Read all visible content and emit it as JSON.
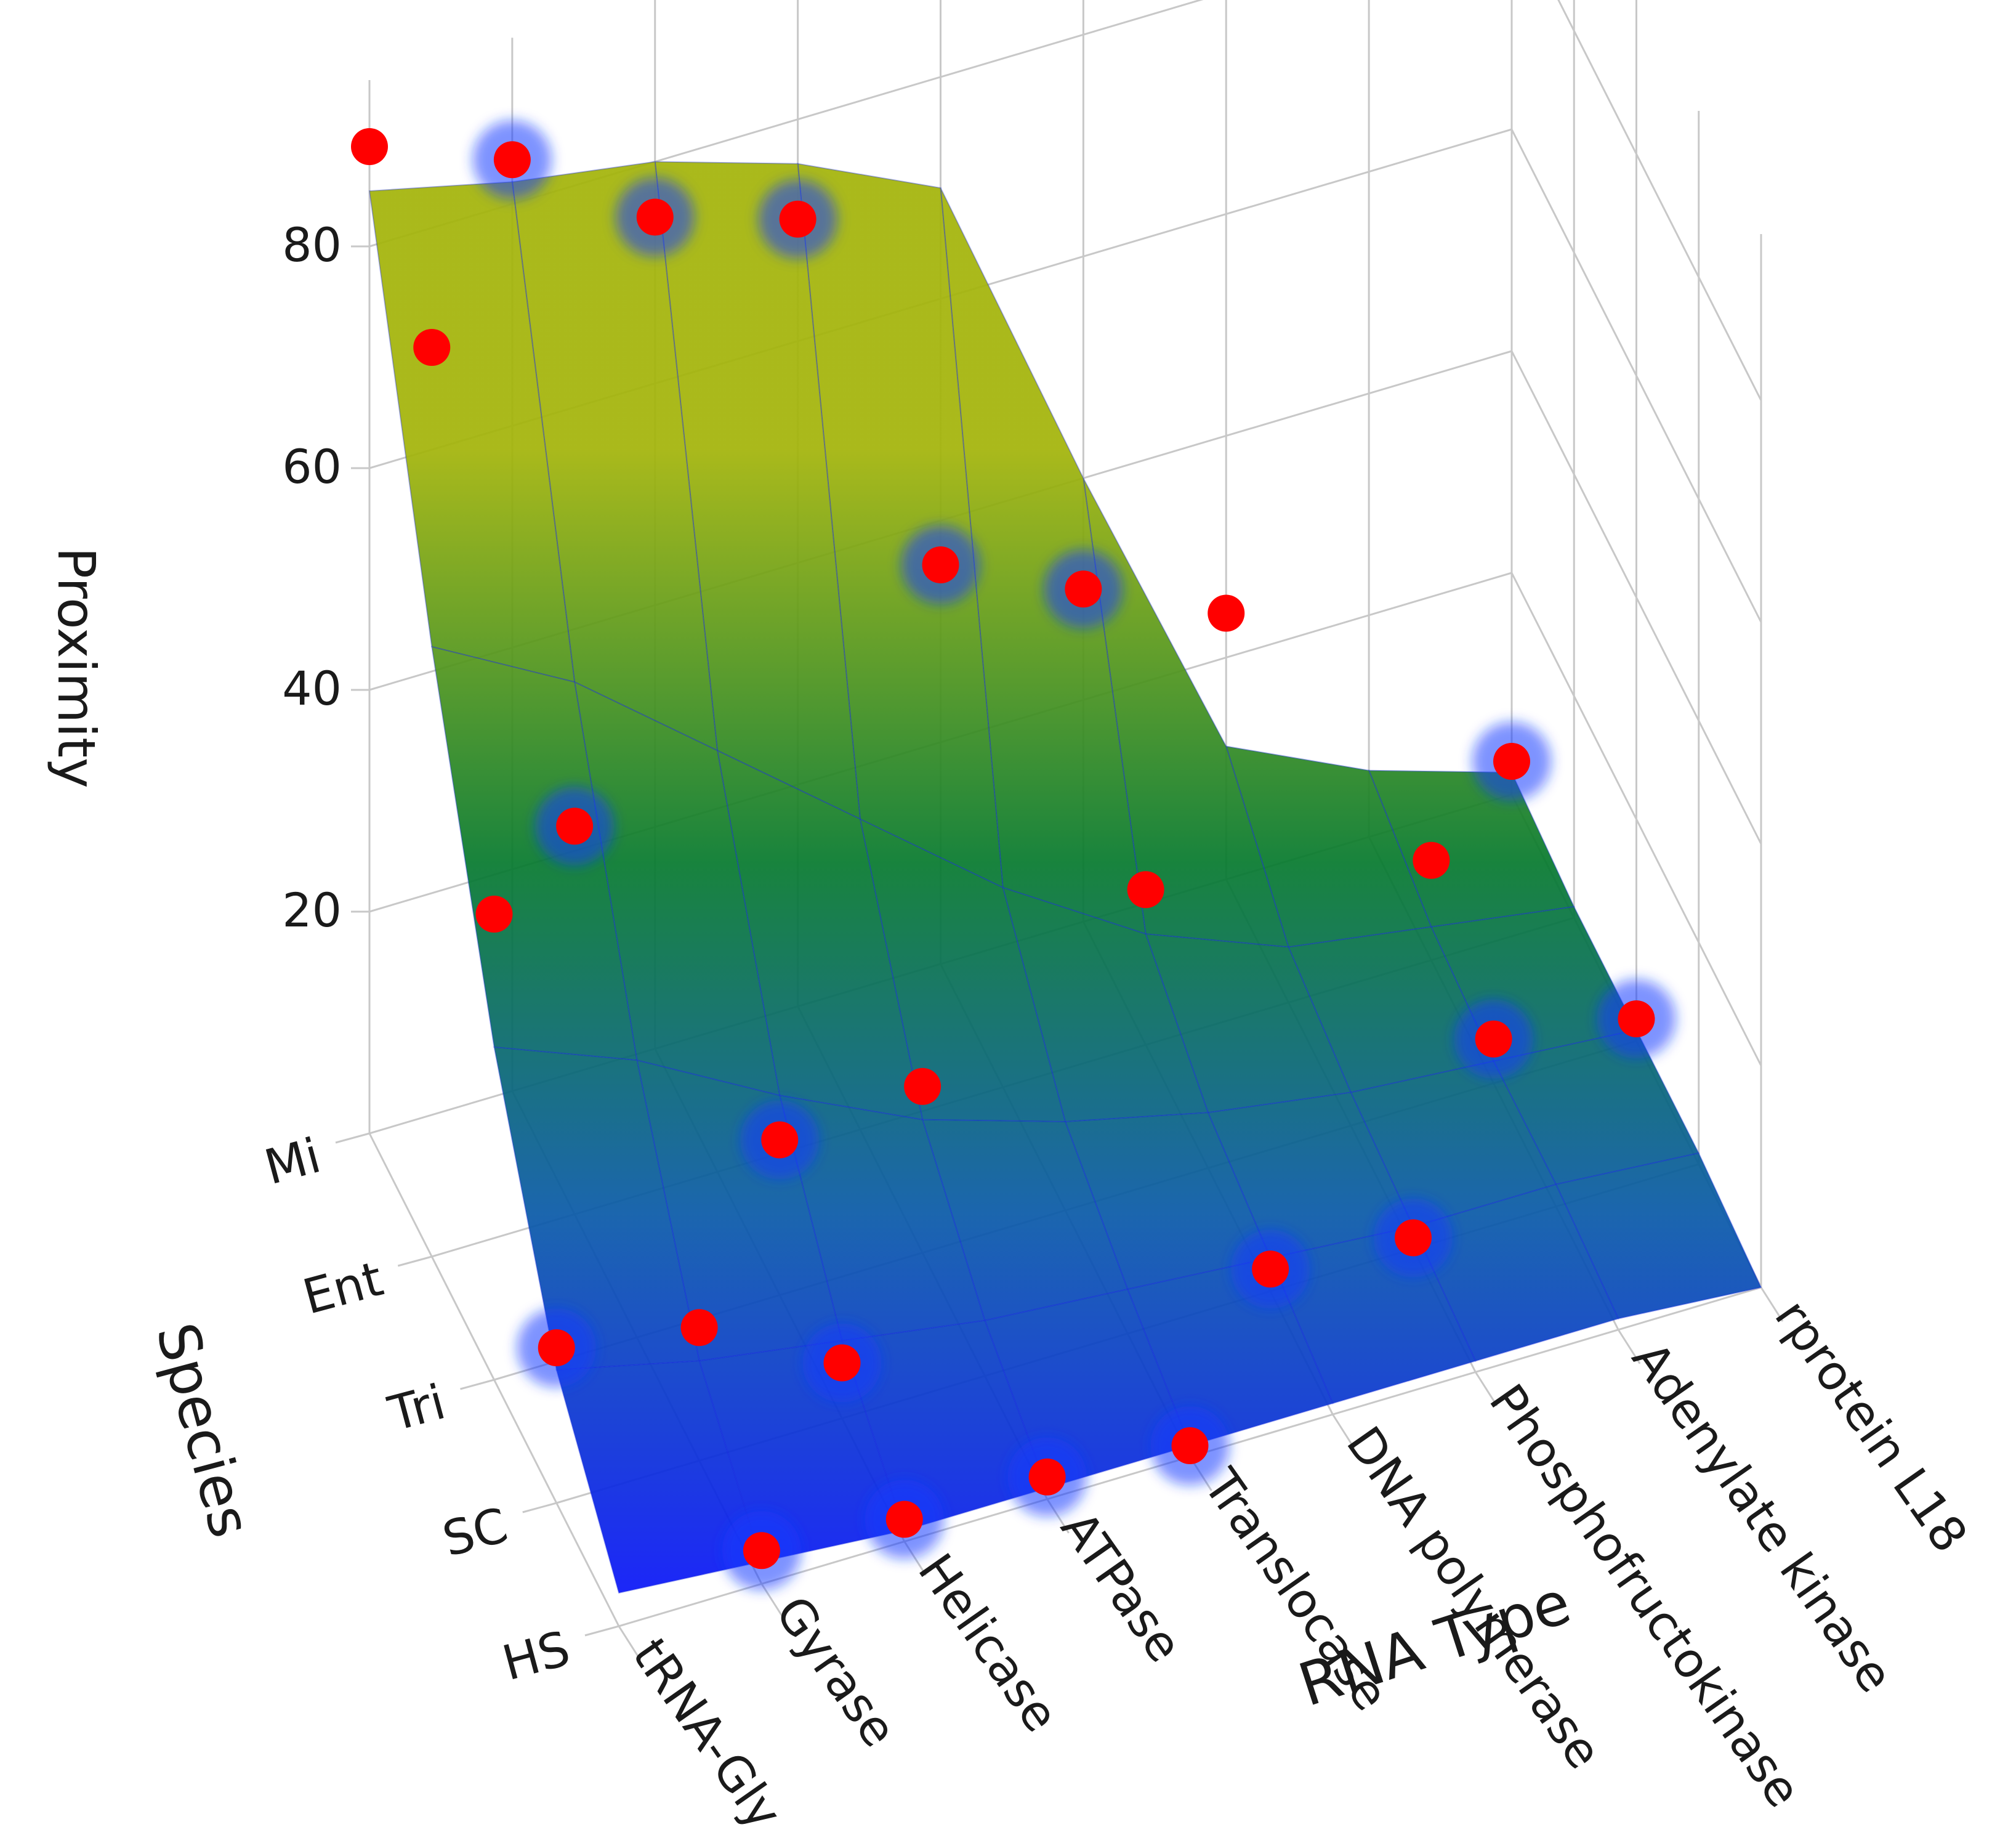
{
  "chart_data": {
    "type": "surface3d",
    "zlabel": "Proximity",
    "ylabel": "Species",
    "xlabel": "RNA Type",
    "z_ticks": [
      20,
      40,
      60,
      80
    ],
    "zlim": [
      0,
      95
    ],
    "x_categories": [
      "tRNA-Gly",
      "Gyrase",
      "Helicase",
      "ATPase",
      "Translocase",
      "DNA polymerase",
      "Phosphofructokinase",
      "Adenylate kinase",
      "rprotein L18"
    ],
    "y_categories": [
      "HS",
      "SC",
      "Tri",
      "Ent",
      "Mi"
    ],
    "colorscale": [
      "#0b10ff",
      "#0a5aa8",
      "#077a2e",
      "#a3b40a"
    ],
    "point_color": "#ff0000",
    "grid": true,
    "surface": {
      "HS": [
        3,
        2,
        1,
        1,
        1,
        1,
        1,
        1,
        0
      ],
      "SC": [
        12,
        9,
        7,
        5,
        4,
        3,
        2,
        2,
        1
      ],
      "Tri": [
        30,
        25,
        18,
        12,
        8,
        5,
        3,
        2,
        1
      ],
      "Ent": [
        55,
        48,
        38,
        28,
        18,
        10,
        5,
        3,
        1
      ],
      "Mi": [
        85,
        82,
        80,
        76,
        70,
        40,
        12,
        6,
        2
      ]
    },
    "points": [
      {
        "species": "Mi",
        "rna": "tRNA-Gly",
        "value": 89
      },
      {
        "species": "Mi",
        "rna": "Gyrase",
        "value": 84
      },
      {
        "species": "Ent",
        "rna": "tRNA-Gly",
        "value": 82
      },
      {
        "species": "Mi",
        "rna": "Helicase",
        "value": 75
      },
      {
        "species": "Mi",
        "rna": "ATPase",
        "value": 71
      },
      {
        "species": "Tri",
        "rna": "tRNA-Gly",
        "value": 42
      },
      {
        "species": "Ent",
        "rna": "Gyrase",
        "value": 35
      },
      {
        "species": "Mi",
        "rna": "Translocase",
        "value": 36
      },
      {
        "species": "SC",
        "rna": "tRNA-Gly",
        "value": 14
      },
      {
        "species": "SC",
        "rna": "Gyrase",
        "value": 12
      },
      {
        "species": "Tri",
        "rna": "Helicase",
        "value": 14
      },
      {
        "species": "Tri",
        "rna": "ATPase",
        "value": 15
      },
      {
        "species": "Mi",
        "rna": "DNA polymerase",
        "value": 30
      },
      {
        "species": "Mi",
        "rna": "Phosphofructokinase",
        "value": 24
      },
      {
        "species": "Ent",
        "rna": "DNA polymerase",
        "value": 14
      },
      {
        "species": "HS",
        "rna": "Gyrase",
        "value": 3
      },
      {
        "species": "SC",
        "rna": "Helicase",
        "value": 5
      },
      {
        "species": "HS",
        "rna": "Helicase",
        "value": 2
      },
      {
        "species": "HS",
        "rna": "ATPase",
        "value": 2
      },
      {
        "species": "SC",
        "rna": "DNA polymerase",
        "value": 2
      },
      {
        "species": "Ent",
        "rna": "Adenylate kinase",
        "value": 9
      },
      {
        "species": "Tri",
        "rna": "Adenylate kinase",
        "value": 4
      },
      {
        "species": "HS",
        "rna": "Translocase",
        "value": 1
      },
      {
        "species": "SC",
        "rna": "Phosphofructokinase",
        "value": 1
      },
      {
        "species": "Tri",
        "rna": "rprotein L18",
        "value": 2
      },
      {
        "species": "Mi",
        "rna": "rprotein L18",
        "value": 3
      }
    ]
  }
}
